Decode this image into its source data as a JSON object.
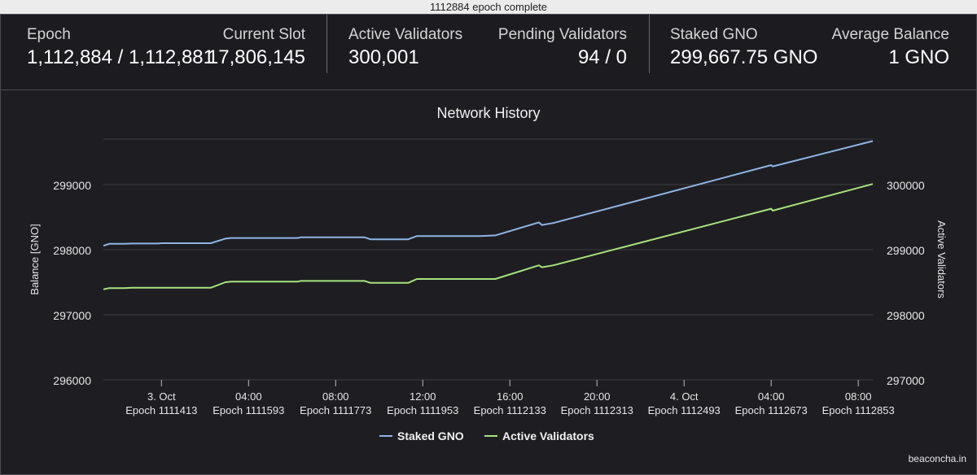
{
  "window": {
    "title": "1112884 epoch complete"
  },
  "stats": {
    "epoch": {
      "label": "Epoch",
      "value": "1,112,884 / 1,112,881"
    },
    "slot": {
      "label": "Current Slot",
      "value": "17,806,145"
    },
    "active": {
      "label": "Active Validators",
      "value": "300,001"
    },
    "pending": {
      "label": "Pending Validators",
      "value": "94 / 0"
    },
    "staked": {
      "label": "Staked GNO",
      "value": "299,667.75 GNO"
    },
    "avg": {
      "label": "Average Balance",
      "value": "1 GNO"
    }
  },
  "chart_data": {
    "type": "line",
    "title": "Network History",
    "ylabel": "Balance [GNO]",
    "y2label": "Active Validators",
    "ylim": [
      296000,
      299700
    ],
    "y2lim": [
      297000,
      300700
    ],
    "yticks": [
      "296000",
      "297000",
      "298000",
      "299000"
    ],
    "y2ticks": [
      "297000",
      "298000",
      "299000",
      "300000"
    ],
    "xlim": [
      0,
      26.5
    ],
    "xticks": [
      {
        "x": 2,
        "date": "3. Oct",
        "epoch": "Epoch 1111413"
      },
      {
        "x": 5,
        "date": "04:00",
        "epoch": "Epoch 1111593"
      },
      {
        "x": 8,
        "date": "08:00",
        "epoch": "Epoch 1111773"
      },
      {
        "x": 11,
        "date": "12:00",
        "epoch": "Epoch 1111953"
      },
      {
        "x": 14,
        "date": "16:00",
        "epoch": "Epoch 1112133"
      },
      {
        "x": 17,
        "date": "20:00",
        "epoch": "Epoch 1112313"
      },
      {
        "x": 20,
        "date": "4. Oct",
        "epoch": "Epoch 1112493"
      },
      {
        "x": 23,
        "date": "04:00",
        "epoch": "Epoch 1112673"
      },
      {
        "x": 26,
        "date": "08:00",
        "epoch": "Epoch 1112853"
      }
    ],
    "legend_position": "bottom-center",
    "series": [
      {
        "name": "Staked GNO",
        "axis": "left",
        "color": "#8fb5e6",
        "points": [
          [
            0,
            298060
          ],
          [
            0.2,
            298090
          ],
          [
            0.7,
            298090
          ],
          [
            1,
            298095
          ],
          [
            1.9,
            298095
          ],
          [
            2,
            298100
          ],
          [
            3,
            298100
          ],
          [
            3.7,
            298100
          ],
          [
            4.2,
            298170
          ],
          [
            4.4,
            298180
          ],
          [
            6,
            298180
          ],
          [
            6.7,
            298180
          ],
          [
            6.8,
            298190
          ],
          [
            9,
            298190
          ],
          [
            9.2,
            298160
          ],
          [
            10.5,
            298160
          ],
          [
            10.8,
            298210
          ],
          [
            13,
            298210
          ],
          [
            13.5,
            298220
          ],
          [
            15,
            298420
          ],
          [
            15.1,
            298380
          ],
          [
            15.5,
            298410
          ],
          [
            23,
            299300
          ],
          [
            23.05,
            299280
          ],
          [
            26.5,
            299670
          ]
        ]
      },
      {
        "name": "Active Validators",
        "axis": "right",
        "color": "#a6e37e",
        "points": [
          [
            0,
            298390
          ],
          [
            0.2,
            298410
          ],
          [
            0.7,
            298410
          ],
          [
            1,
            298415
          ],
          [
            3,
            298415
          ],
          [
            3.7,
            298415
          ],
          [
            4.2,
            298500
          ],
          [
            4.4,
            298510
          ],
          [
            6,
            298510
          ],
          [
            6.7,
            298510
          ],
          [
            6.8,
            298520
          ],
          [
            9,
            298520
          ],
          [
            9.2,
            298490
          ],
          [
            10.5,
            298490
          ],
          [
            10.8,
            298550
          ],
          [
            13,
            298550
          ],
          [
            13.5,
            298550
          ],
          [
            15,
            298760
          ],
          [
            15.1,
            298730
          ],
          [
            15.5,
            298760
          ],
          [
            23,
            299630
          ],
          [
            23.05,
            299600
          ],
          [
            26.5,
            300010
          ]
        ]
      }
    ]
  },
  "footer": {
    "credit": "beaconcha.in"
  }
}
